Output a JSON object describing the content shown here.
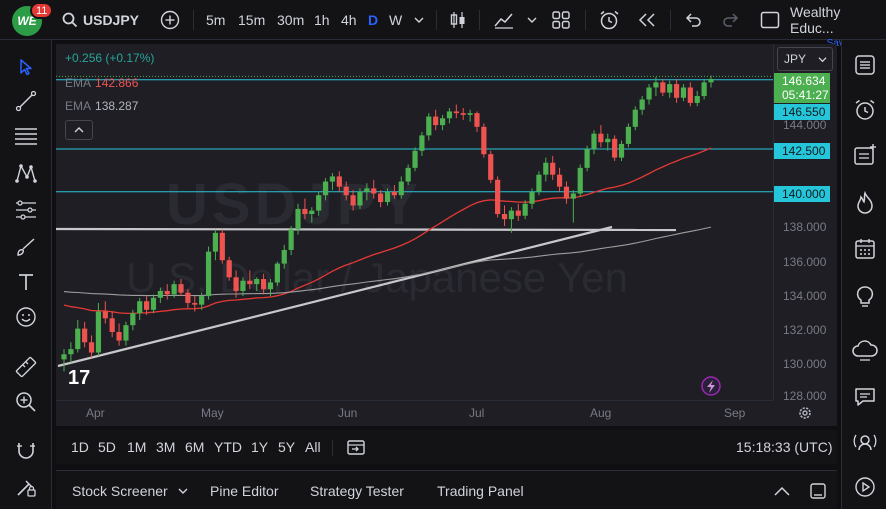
{
  "topbar": {
    "logo_text": "WE",
    "notification_count": "11",
    "symbol": "USDJPY",
    "timeframes": [
      "5m",
      "15m",
      "30m",
      "1h",
      "4h",
      "D",
      "W"
    ],
    "active_timeframe": "D",
    "user_name": "Wealthy Educ...",
    "save_label": "Save"
  },
  "legend": {
    "change": "+0.256 (+0.17%)",
    "ema1_label": "EMA",
    "ema1_value": "142.866",
    "ema2_label": "EMA",
    "ema2_value": "138.287"
  },
  "watermark": {
    "symbol": "USDJPY",
    "description": "U.S. Dollar / Japanese Yen"
  },
  "price_axis": {
    "currency": "JPY",
    "labels": [
      "144.000",
      "138.000",
      "136.000",
      "134.000",
      "132.000",
      "130.000",
      "128.000"
    ],
    "current_price": "146.634",
    "countdown": "05:41:27",
    "tag_146_550": "146.550",
    "tag_142_500": "142.500",
    "tag_140_000": "140.000"
  },
  "time_axis": {
    "labels": [
      "Apr",
      "May",
      "Jun",
      "Jul",
      "Aug",
      "Sep"
    ]
  },
  "range_bar": {
    "ranges": [
      "1D",
      "5D",
      "1M",
      "3M",
      "6M",
      "YTD",
      "1Y",
      "5Y",
      "All"
    ],
    "clock": "15:18:33 (UTC)"
  },
  "bottom_tabs": {
    "tabs": [
      "Stock Screener",
      "Pine Editor",
      "Strategy Tester",
      "Trading Panel"
    ]
  },
  "colors": {
    "bull": "#26a69a",
    "bull_bright": "#4caf50",
    "bear": "#ef5350",
    "level_line": "#26c6da",
    "ema_fast": "#e53935",
    "ema_slow": "#9e9e9e",
    "active_blue": "#2962ff"
  },
  "chart_data": {
    "type": "candlestick",
    "title": "",
    "y_axis_labels": [
      144,
      138,
      136,
      134,
      132,
      130,
      128
    ],
    "horizontal_levels": [
      146.55,
      142.5,
      140.0
    ],
    "ema_fast_last": 142.866,
    "ema_slow_last": 138.287,
    "last_price": 146.634,
    "candles": [
      [
        130.2,
        130.8,
        129.5,
        130.5
      ],
      [
        130.5,
        131.2,
        130.0,
        130.8
      ],
      [
        130.8,
        132.5,
        130.6,
        132.0
      ],
      [
        132.0,
        132.4,
        130.9,
        131.2
      ],
      [
        131.2,
        131.6,
        130.3,
        130.6
      ],
      [
        130.6,
        133.5,
        130.4,
        133.0
      ],
      [
        133.0,
        133.6,
        132.3,
        132.6
      ],
      [
        132.6,
        133.0,
        131.5,
        131.8
      ],
      [
        131.8,
        132.3,
        131.0,
        131.3
      ],
      [
        131.3,
        132.4,
        131.0,
        132.2
      ],
      [
        132.2,
        133.1,
        131.9,
        132.9
      ],
      [
        132.9,
        133.8,
        132.5,
        133.6
      ],
      [
        133.6,
        133.9,
        132.8,
        133.1
      ],
      [
        133.1,
        134.0,
        132.9,
        133.8
      ],
      [
        133.8,
        134.4,
        133.5,
        134.2
      ],
      [
        134.2,
        134.6,
        133.7,
        134.0
      ],
      [
        134.0,
        134.8,
        133.8,
        134.6
      ],
      [
        134.6,
        134.9,
        133.9,
        134.1
      ],
      [
        134.1,
        134.3,
        133.2,
        133.5
      ],
      [
        133.5,
        133.9,
        133.0,
        133.4
      ],
      [
        133.4,
        134.1,
        133.1,
        133.9
      ],
      [
        133.9,
        136.8,
        133.7,
        136.5
      ],
      [
        136.5,
        137.8,
        136.0,
        137.6
      ],
      [
        137.6,
        137.8,
        135.8,
        136.0
      ],
      [
        136.0,
        136.2,
        134.8,
        135.0
      ],
      [
        135.0,
        135.4,
        133.8,
        134.2
      ],
      [
        134.2,
        135.0,
        133.9,
        134.8
      ],
      [
        134.8,
        135.4,
        134.3,
        134.6
      ],
      [
        134.6,
        135.0,
        134.2,
        134.9
      ],
      [
        134.9,
        135.2,
        134.0,
        134.3
      ],
      [
        134.3,
        134.9,
        133.9,
        134.7
      ],
      [
        134.7,
        135.9,
        134.5,
        135.8
      ],
      [
        135.8,
        136.9,
        135.5,
        136.6
      ],
      [
        136.6,
        138.0,
        136.3,
        137.8
      ],
      [
        137.8,
        139.3,
        137.5,
        139.0
      ],
      [
        139.0,
        139.6,
        138.4,
        138.7
      ],
      [
        138.7,
        139.1,
        138.2,
        138.9
      ],
      [
        138.9,
        140.0,
        138.6,
        139.8
      ],
      [
        139.8,
        140.8,
        139.5,
        140.6
      ],
      [
        140.6,
        141.1,
        140.1,
        140.9
      ],
      [
        140.9,
        141.2,
        140.0,
        140.3
      ],
      [
        140.3,
        140.6,
        139.5,
        139.8
      ],
      [
        139.8,
        140.1,
        138.9,
        139.2
      ],
      [
        139.2,
        140.2,
        139.0,
        140.0
      ],
      [
        140.0,
        140.5,
        139.5,
        140.2
      ],
      [
        140.2,
        140.7,
        139.6,
        139.9
      ],
      [
        139.9,
        140.1,
        139.1,
        139.4
      ],
      [
        139.4,
        140.2,
        139.2,
        140.0
      ],
      [
        140.0,
        140.4,
        139.6,
        139.8
      ],
      [
        139.8,
        140.9,
        139.6,
        140.6
      ],
      [
        140.6,
        141.6,
        140.4,
        141.4
      ],
      [
        141.4,
        142.6,
        141.2,
        142.4
      ],
      [
        142.4,
        143.5,
        142.1,
        143.3
      ],
      [
        143.3,
        144.6,
        143.0,
        144.4
      ],
      [
        144.4,
        144.8,
        143.6,
        143.9
      ],
      [
        143.9,
        144.5,
        143.6,
        144.3
      ],
      [
        144.3,
        144.9,
        144.0,
        144.7
      ],
      [
        144.7,
        145.1,
        144.3,
        144.6
      ],
      [
        144.6,
        144.9,
        144.2,
        144.5
      ],
      [
        144.5,
        144.8,
        144.1,
        144.6
      ],
      [
        144.6,
        144.7,
        143.5,
        143.8
      ],
      [
        143.8,
        144.0,
        142.0,
        142.2
      ],
      [
        142.2,
        142.4,
        140.5,
        140.7
      ],
      [
        140.7,
        140.9,
        138.5,
        138.7
      ],
      [
        138.7,
        139.2,
        138.0,
        138.4
      ],
      [
        138.4,
        139.1,
        137.6,
        138.9
      ],
      [
        138.9,
        139.3,
        138.3,
        138.6
      ],
      [
        138.6,
        139.5,
        138.4,
        139.3
      ],
      [
        139.3,
        140.2,
        139.0,
        140.0
      ],
      [
        140.0,
        141.2,
        139.8,
        141.0
      ],
      [
        141.0,
        142.0,
        140.6,
        141.7
      ],
      [
        141.7,
        142.1,
        140.7,
        141.0
      ],
      [
        141.0,
        141.4,
        140.0,
        140.3
      ],
      [
        140.3,
        140.6,
        139.3,
        139.6
      ],
      [
        139.6,
        140.1,
        138.2,
        139.9
      ],
      [
        139.9,
        141.6,
        139.7,
        141.4
      ],
      [
        141.4,
        142.7,
        141.2,
        142.5
      ],
      [
        142.5,
        143.6,
        142.2,
        143.4
      ],
      [
        143.4,
        143.9,
        142.6,
        142.9
      ],
      [
        142.9,
        143.4,
        142.4,
        143.1
      ],
      [
        143.1,
        143.3,
        141.8,
        142.0
      ],
      [
        142.0,
        143.0,
        141.8,
        142.8
      ],
      [
        142.8,
        144.0,
        142.6,
        143.8
      ],
      [
        143.8,
        145.0,
        143.6,
        144.8
      ],
      [
        144.8,
        145.6,
        144.5,
        145.4
      ],
      [
        145.4,
        146.3,
        145.1,
        146.1
      ],
      [
        146.1,
        146.7,
        145.6,
        146.4
      ],
      [
        146.4,
        146.6,
        145.6,
        145.8
      ],
      [
        145.8,
        146.5,
        145.5,
        146.3
      ],
      [
        146.3,
        146.6,
        145.2,
        145.5
      ],
      [
        145.5,
        146.3,
        145.3,
        146.1
      ],
      [
        146.1,
        146.4,
        145.0,
        145.2
      ],
      [
        145.2,
        145.9,
        145.0,
        145.6
      ],
      [
        145.6,
        146.6,
        145.4,
        146.4
      ],
      [
        146.4,
        146.8,
        146.1,
        146.6
      ]
    ]
  }
}
